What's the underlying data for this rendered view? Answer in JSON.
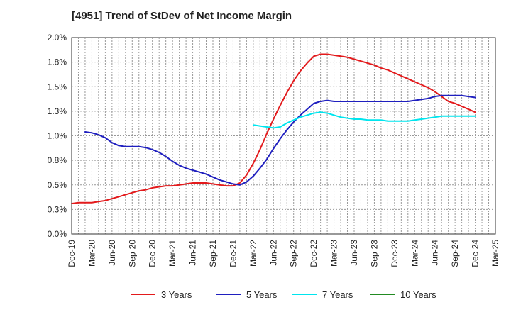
{
  "chart_data": {
    "type": "line",
    "title": "[4951]  Trend of StDev of Net Income Margin",
    "xlabel": "",
    "ylabel": "",
    "x_tick_labels": [
      "Dec-19",
      "Mar-20",
      "Jun-20",
      "Sep-20",
      "Dec-20",
      "Mar-21",
      "Jun-21",
      "Sep-21",
      "Dec-21",
      "Mar-22",
      "Jun-22",
      "Sep-22",
      "Dec-22",
      "Mar-23",
      "Jun-23",
      "Sep-23",
      "Dec-23",
      "Mar-24",
      "Jun-24",
      "Sep-24",
      "Dec-24",
      "Mar-25"
    ],
    "y_tick_labels": [
      "0.0%",
      "0.3%",
      "0.5%",
      "0.8%",
      "1.0%",
      "1.3%",
      "1.5%",
      "1.8%",
      "2.0%"
    ],
    "ylim": [
      0,
      2.0
    ],
    "grid": true,
    "legend_position": "bottom",
    "series": [
      {
        "name": "3 Years",
        "color": "#e31a1c",
        "points": [
          [
            "Dec-19",
            0.31
          ],
          [
            "Jan-20",
            0.32
          ],
          [
            "Feb-20",
            0.32
          ],
          [
            "Mar-20",
            0.32
          ],
          [
            "Apr-20",
            0.33
          ],
          [
            "May-20",
            0.34
          ],
          [
            "Jun-20",
            0.36
          ],
          [
            "Jul-20",
            0.38
          ],
          [
            "Aug-20",
            0.4
          ],
          [
            "Sep-20",
            0.42
          ],
          [
            "Oct-20",
            0.44
          ],
          [
            "Nov-20",
            0.45
          ],
          [
            "Dec-20",
            0.47
          ],
          [
            "Jan-21",
            0.48
          ],
          [
            "Feb-21",
            0.49
          ],
          [
            "Mar-21",
            0.49
          ],
          [
            "Apr-21",
            0.5
          ],
          [
            "May-21",
            0.51
          ],
          [
            "Jun-21",
            0.52
          ],
          [
            "Jul-21",
            0.52
          ],
          [
            "Aug-21",
            0.52
          ],
          [
            "Sep-21",
            0.51
          ],
          [
            "Oct-21",
            0.5
          ],
          [
            "Nov-21",
            0.49
          ],
          [
            "Dec-21",
            0.49
          ],
          [
            "Jan-22",
            0.52
          ],
          [
            "Feb-22",
            0.6
          ],
          [
            "Mar-22",
            0.72
          ],
          [
            "Apr-22",
            0.86
          ],
          [
            "May-22",
            1.02
          ],
          [
            "Jun-22",
            1.17
          ],
          [
            "Jul-22",
            1.31
          ],
          [
            "Aug-22",
            1.44
          ],
          [
            "Sep-22",
            1.56
          ],
          [
            "Oct-22",
            1.66
          ],
          [
            "Nov-22",
            1.74
          ],
          [
            "Dec-22",
            1.81
          ],
          [
            "Jan-23",
            1.83
          ],
          [
            "Feb-23",
            1.83
          ],
          [
            "Mar-23",
            1.82
          ],
          [
            "Apr-23",
            1.81
          ],
          [
            "May-23",
            1.8
          ],
          [
            "Jun-23",
            1.78
          ],
          [
            "Jul-23",
            1.76
          ],
          [
            "Aug-23",
            1.74
          ],
          [
            "Sep-23",
            1.72
          ],
          [
            "Oct-23",
            1.69
          ],
          [
            "Nov-23",
            1.67
          ],
          [
            "Dec-23",
            1.64
          ],
          [
            "Jan-24",
            1.61
          ],
          [
            "Feb-24",
            1.58
          ],
          [
            "Mar-24",
            1.55
          ],
          [
            "Apr-24",
            1.52
          ],
          [
            "May-24",
            1.49
          ],
          [
            "Jun-24",
            1.45
          ],
          [
            "Jul-24",
            1.4
          ],
          [
            "Aug-24",
            1.35
          ],
          [
            "Sep-24",
            1.33
          ],
          [
            "Oct-24",
            1.3
          ],
          [
            "Nov-24",
            1.27
          ],
          [
            "Dec-24",
            1.24
          ]
        ]
      },
      {
        "name": "5 Years",
        "color": "#1f1fbf",
        "points": [
          [
            "Feb-20",
            1.04
          ],
          [
            "Mar-20",
            1.03
          ],
          [
            "Apr-20",
            1.01
          ],
          [
            "May-20",
            0.98
          ],
          [
            "Jun-20",
            0.93
          ],
          [
            "Jul-20",
            0.9
          ],
          [
            "Aug-20",
            0.89
          ],
          [
            "Sep-20",
            0.89
          ],
          [
            "Oct-20",
            0.89
          ],
          [
            "Nov-20",
            0.88
          ],
          [
            "Dec-20",
            0.86
          ],
          [
            "Jan-21",
            0.83
          ],
          [
            "Feb-21",
            0.79
          ],
          [
            "Mar-21",
            0.74
          ],
          [
            "Apr-21",
            0.7
          ],
          [
            "May-21",
            0.67
          ],
          [
            "Jun-21",
            0.65
          ],
          [
            "Jul-21",
            0.63
          ],
          [
            "Aug-21",
            0.61
          ],
          [
            "Sep-21",
            0.58
          ],
          [
            "Oct-21",
            0.55
          ],
          [
            "Nov-21",
            0.53
          ],
          [
            "Dec-21",
            0.51
          ],
          [
            "Jan-22",
            0.5
          ],
          [
            "Feb-22",
            0.53
          ],
          [
            "Mar-22",
            0.59
          ],
          [
            "Apr-22",
            0.67
          ],
          [
            "May-22",
            0.76
          ],
          [
            "Jun-22",
            0.87
          ],
          [
            "Jul-22",
            0.97
          ],
          [
            "Aug-22",
            1.06
          ],
          [
            "Sep-22",
            1.14
          ],
          [
            "Oct-22",
            1.21
          ],
          [
            "Nov-22",
            1.27
          ],
          [
            "Dec-22",
            1.33
          ],
          [
            "Jan-23",
            1.35
          ],
          [
            "Feb-23",
            1.36
          ],
          [
            "Mar-23",
            1.35
          ],
          [
            "Apr-23",
            1.35
          ],
          [
            "May-23",
            1.35
          ],
          [
            "Jun-23",
            1.35
          ],
          [
            "Jul-23",
            1.35
          ],
          [
            "Aug-23",
            1.35
          ],
          [
            "Sep-23",
            1.35
          ],
          [
            "Oct-23",
            1.35
          ],
          [
            "Nov-23",
            1.35
          ],
          [
            "Dec-23",
            1.35
          ],
          [
            "Jan-24",
            1.35
          ],
          [
            "Feb-24",
            1.35
          ],
          [
            "Mar-24",
            1.36
          ],
          [
            "Apr-24",
            1.37
          ],
          [
            "May-24",
            1.38
          ],
          [
            "Jun-24",
            1.4
          ],
          [
            "Jul-24",
            1.41
          ],
          [
            "Aug-24",
            1.41
          ],
          [
            "Sep-24",
            1.41
          ],
          [
            "Oct-24",
            1.41
          ],
          [
            "Nov-24",
            1.4
          ],
          [
            "Dec-24",
            1.39
          ]
        ]
      },
      {
        "name": "7 Years",
        "color": "#00e5ee",
        "points": [
          [
            "Mar-22",
            1.11
          ],
          [
            "Apr-22",
            1.1
          ],
          [
            "May-22",
            1.09
          ],
          [
            "Jun-22",
            1.08
          ],
          [
            "Jul-22",
            1.09
          ],
          [
            "Aug-22",
            1.13
          ],
          [
            "Sep-22",
            1.16
          ],
          [
            "Oct-22",
            1.19
          ],
          [
            "Nov-22",
            1.21
          ],
          [
            "Dec-22",
            1.23
          ],
          [
            "Jan-23",
            1.24
          ],
          [
            "Feb-23",
            1.23
          ],
          [
            "Mar-23",
            1.21
          ],
          [
            "Apr-23",
            1.19
          ],
          [
            "May-23",
            1.18
          ],
          [
            "Jun-23",
            1.17
          ],
          [
            "Jul-23",
            1.17
          ],
          [
            "Aug-23",
            1.16
          ],
          [
            "Sep-23",
            1.16
          ],
          [
            "Oct-23",
            1.16
          ],
          [
            "Nov-23",
            1.15
          ],
          [
            "Dec-23",
            1.15
          ],
          [
            "Jan-24",
            1.15
          ],
          [
            "Feb-24",
            1.15
          ],
          [
            "Mar-24",
            1.16
          ],
          [
            "Apr-24",
            1.17
          ],
          [
            "May-24",
            1.18
          ],
          [
            "Jun-24",
            1.19
          ],
          [
            "Jul-24",
            1.2
          ],
          [
            "Aug-24",
            1.2
          ],
          [
            "Sep-24",
            1.2
          ],
          [
            "Oct-24",
            1.2
          ],
          [
            "Nov-24",
            1.2
          ],
          [
            "Dec-24",
            1.2
          ]
        ]
      },
      {
        "name": "10 Years",
        "color": "#228b22",
        "points": []
      }
    ]
  }
}
